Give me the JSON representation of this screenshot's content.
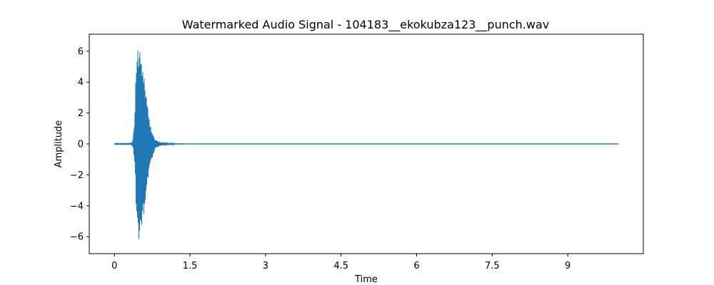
{
  "chart_data": {
    "type": "line",
    "title": "Watermarked Audio Signal - 104183__ekokubza123__punch.wav",
    "xlabel": "Time",
    "ylabel": "Amplitude",
    "xlim": [
      -0.5,
      10.5
    ],
    "ylim": [
      -7.1,
      7.1
    ],
    "xticks": [
      0,
      1.5,
      3,
      4.5,
      6,
      7.5,
      9
    ],
    "xtick_labels": [
      "0",
      "1.5",
      "3",
      "4.5",
      "6",
      "7.5",
      "9"
    ],
    "yticks": [
      -6,
      -4,
      -2,
      0,
      2,
      4,
      6
    ],
    "ytick_labels": [
      "−6",
      "−4",
      "−2",
      "0",
      "2",
      "4",
      "6"
    ],
    "grid": false,
    "series": [
      {
        "color": "#1f77b4",
        "x_range": [
          0,
          10
        ],
        "envelope_x": [
          0,
          0.3,
          0.36,
          0.4,
          0.42,
          0.45,
          0.47,
          0.5,
          0.53,
          0.56,
          0.6,
          0.65,
          0.7,
          0.8,
          0.9,
          1.0,
          1.1,
          1.2,
          1.5,
          10
        ],
        "envelope_y": [
          0.03,
          0.03,
          0.15,
          1.5,
          4.3,
          6.2,
          6.5,
          6.1,
          5.8,
          5.2,
          4.3,
          2.7,
          1.4,
          0.3,
          0.12,
          0.1,
          0.06,
          0.02,
          0.01,
          0.01
        ]
      }
    ]
  }
}
